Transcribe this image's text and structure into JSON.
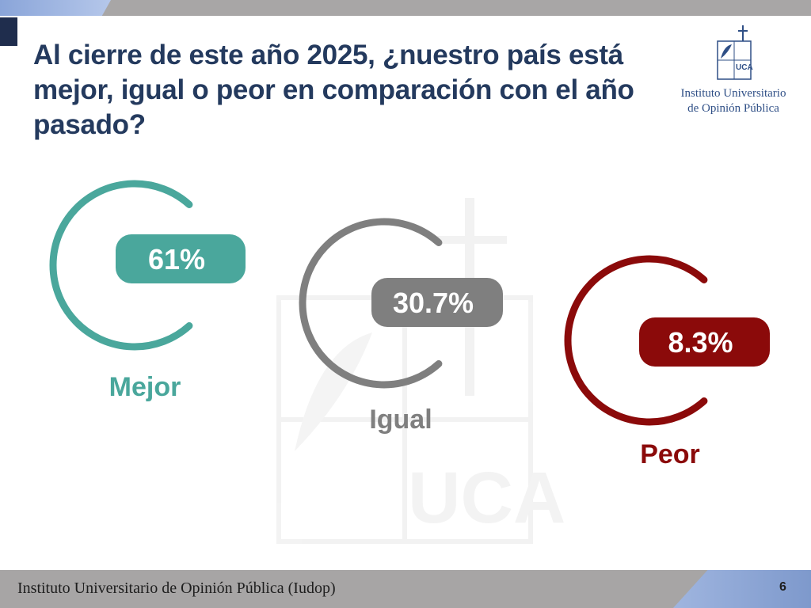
{
  "title": "Al cierre de este año 2025, ¿nuestro país está mejor, igual o peor en comparación con el año pasado?",
  "logo": {
    "line1": "Instituto Universitario",
    "line2": "de Opinión Pública",
    "mark": "UCA"
  },
  "footer": {
    "text": "Instituto Universitario de Opinión Pública (Iudop)",
    "page": "6"
  },
  "colors": {
    "mejor": "#4aa79c",
    "igual": "#7f7f7f",
    "peor": "#8b0a0a",
    "title": "#243a5e"
  },
  "chart_data": {
    "type": "pie",
    "title": "Al cierre de este año 2025, ¿nuestro país está mejor, igual o peor en comparación con el año pasado?",
    "unit": "%",
    "categories": [
      "Mejor",
      "Igual",
      "Peor"
    ],
    "values": [
      61,
      30.7,
      8.3
    ],
    "labels": [
      "61%",
      "30.7%",
      "8.3%"
    ]
  }
}
